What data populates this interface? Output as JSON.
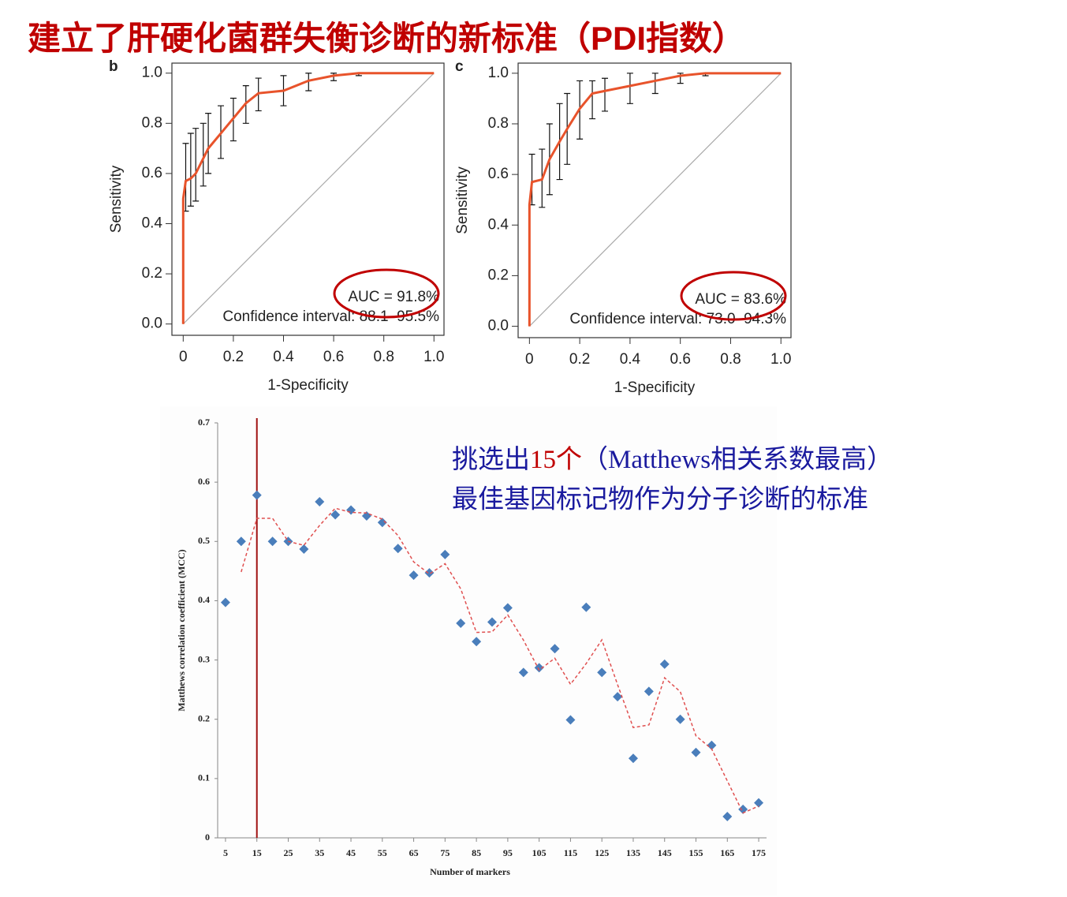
{
  "title": "建立了肝硬化菌群失衡诊断的新标准（PDI指数）",
  "annotation": {
    "line1": [
      "挑选出",
      "15个",
      "（Matthews相关系数最高）"
    ],
    "line2": "最佳基因标记物作为分子诊断的标准"
  },
  "chart_data": [
    {
      "type": "line",
      "panel": "b",
      "x_label": "1-Specificity",
      "y_label": "Sensitivity",
      "annotations": [
        "AUC = 91.8%",
        "Confidence interval: 88.1–95.5%"
      ],
      "xlim": [
        -0.045,
        1.04
      ],
      "ylim": [
        -0.045,
        1.04
      ],
      "xticks": [
        0,
        0.2,
        0.4,
        0.6,
        0.8,
        {
          "value": 1,
          "label": "1.0"
        }
      ],
      "yticks": [
        {
          "value": 0,
          "label": "0.0"
        },
        0.2,
        0.4,
        0.6,
        0.8,
        {
          "value": 1,
          "label": "1.0"
        }
      ],
      "series": [
        {
          "color": "#e8532b",
          "x": [
            0,
            0,
            0.01,
            0.03,
            0.05,
            0.08,
            0.1,
            0.15,
            0.2,
            0.25,
            0.3,
            0.4,
            0.5,
            0.6,
            0.7,
            1.0
          ],
          "values": [
            0,
            0.5,
            0.57,
            0.58,
            0.6,
            0.66,
            0.7,
            0.76,
            0.82,
            0.88,
            0.92,
            0.93,
            0.97,
            0.99,
            1.0,
            1.0
          ],
          "lower": [
            null,
            null,
            0.45,
            0.47,
            0.49,
            0.55,
            0.6,
            0.66,
            0.73,
            0.8,
            0.85,
            0.87,
            0.93,
            0.97,
            0.99,
            null
          ],
          "upper": [
            null,
            null,
            0.72,
            0.76,
            0.78,
            0.8,
            0.84,
            0.87,
            0.9,
            0.95,
            0.98,
            0.99,
            1.0,
            1.0,
            1.0,
            null
          ]
        }
      ]
    },
    {
      "type": "line",
      "panel": "c",
      "x_label": "1-Specificity",
      "y_label": "Sensitivity",
      "annotations": [
        "AUC = 83.6%",
        "Confidence interval: 73.0–94.3%"
      ],
      "xlim": [
        -0.045,
        1.04
      ],
      "ylim": [
        -0.045,
        1.04
      ],
      "xticks": [
        0,
        0.2,
        0.4,
        0.6,
        0.8,
        {
          "value": 1,
          "label": "1.0"
        }
      ],
      "yticks": [
        {
          "value": 0,
          "label": "0.0"
        },
        0.2,
        0.4,
        0.6,
        0.8,
        {
          "value": 1,
          "label": "1.0"
        }
      ],
      "series": [
        {
          "color": "#e8532b",
          "x": [
            0,
            0,
            0.01,
            0.05,
            0.08,
            0.12,
            0.15,
            0.2,
            0.25,
            0.3,
            0.4,
            0.5,
            0.6,
            0.7,
            1.0
          ],
          "values": [
            0,
            0.48,
            0.57,
            0.58,
            0.66,
            0.73,
            0.78,
            0.86,
            0.92,
            0.93,
            0.95,
            0.97,
            0.99,
            1.0,
            1.0
          ],
          "lower": [
            null,
            null,
            0.48,
            0.47,
            0.52,
            0.58,
            0.64,
            0.74,
            0.82,
            0.85,
            0.88,
            0.92,
            0.96,
            0.99,
            null
          ],
          "upper": [
            null,
            null,
            0.68,
            0.7,
            0.8,
            0.88,
            0.92,
            0.97,
            0.97,
            0.98,
            1.0,
            1.0,
            1.0,
            1.0,
            null
          ]
        }
      ]
    },
    {
      "type": "scatter",
      "x_label": "Number of markers",
      "y_label": "Matthews correlation coefficient (MCC)",
      "xlim": [
        2.5,
        177.5
      ],
      "ylim": [
        0,
        0.7
      ],
      "xticks": [
        5,
        15,
        25,
        35,
        45,
        55,
        65,
        75,
        85,
        95,
        105,
        115,
        125,
        135,
        145,
        155,
        165,
        175
      ],
      "yticks": [
        0,
        0.1,
        0.2,
        0.3,
        0.4,
        0.5,
        0.6,
        0.7
      ],
      "vline": 15,
      "vline_color": "#a01010",
      "series": [
        {
          "color": "#4a7ebb",
          "x": [
            5,
            10,
            15,
            20,
            25,
            30,
            35,
            40,
            45,
            50,
            55,
            60,
            65,
            70,
            75,
            80,
            85,
            90,
            95,
            100,
            105,
            110,
            115,
            120,
            125,
            130,
            135,
            140,
            145,
            150,
            155,
            160,
            165,
            170,
            175
          ],
          "values": [
            0.397,
            0.5,
            0.578,
            0.5,
            0.5,
            0.487,
            0.567,
            0.545,
            0.553,
            0.543,
            0.532,
            0.488,
            0.443,
            0.447,
            0.478,
            0.362,
            0.331,
            0.364,
            0.388,
            0.279,
            0.287,
            0.319,
            0.199,
            0.389,
            0.279,
            0.238,
            0.134,
            0.247,
            0.293,
            0.2,
            0.144,
            0.156,
            0.036,
            0.048,
            0.059
          ]
        },
        {
          "color": "#e05050",
          "style": "dashed",
          "x": [
            5,
            10,
            15,
            20,
            25,
            30,
            35,
            40,
            45,
            50,
            55,
            60,
            65,
            70,
            75,
            80,
            85,
            90,
            95,
            100,
            105,
            110,
            115,
            120,
            125,
            130,
            135,
            140,
            145,
            150,
            155,
            160,
            165,
            170,
            175
          ],
          "values": [
            null,
            0.4485,
            0.539,
            0.539,
            0.5,
            0.4935,
            0.527,
            0.556,
            0.549,
            0.548,
            0.5375,
            0.51,
            0.4655,
            0.445,
            0.4625,
            0.42,
            0.3465,
            0.3475,
            0.376,
            0.3335,
            0.283,
            0.303,
            0.259,
            0.294,
            0.334,
            0.2585,
            0.186,
            0.1905,
            0.27,
            0.2465,
            0.172,
            0.15,
            0.096,
            0.042,
            0.0535
          ]
        }
      ]
    }
  ]
}
